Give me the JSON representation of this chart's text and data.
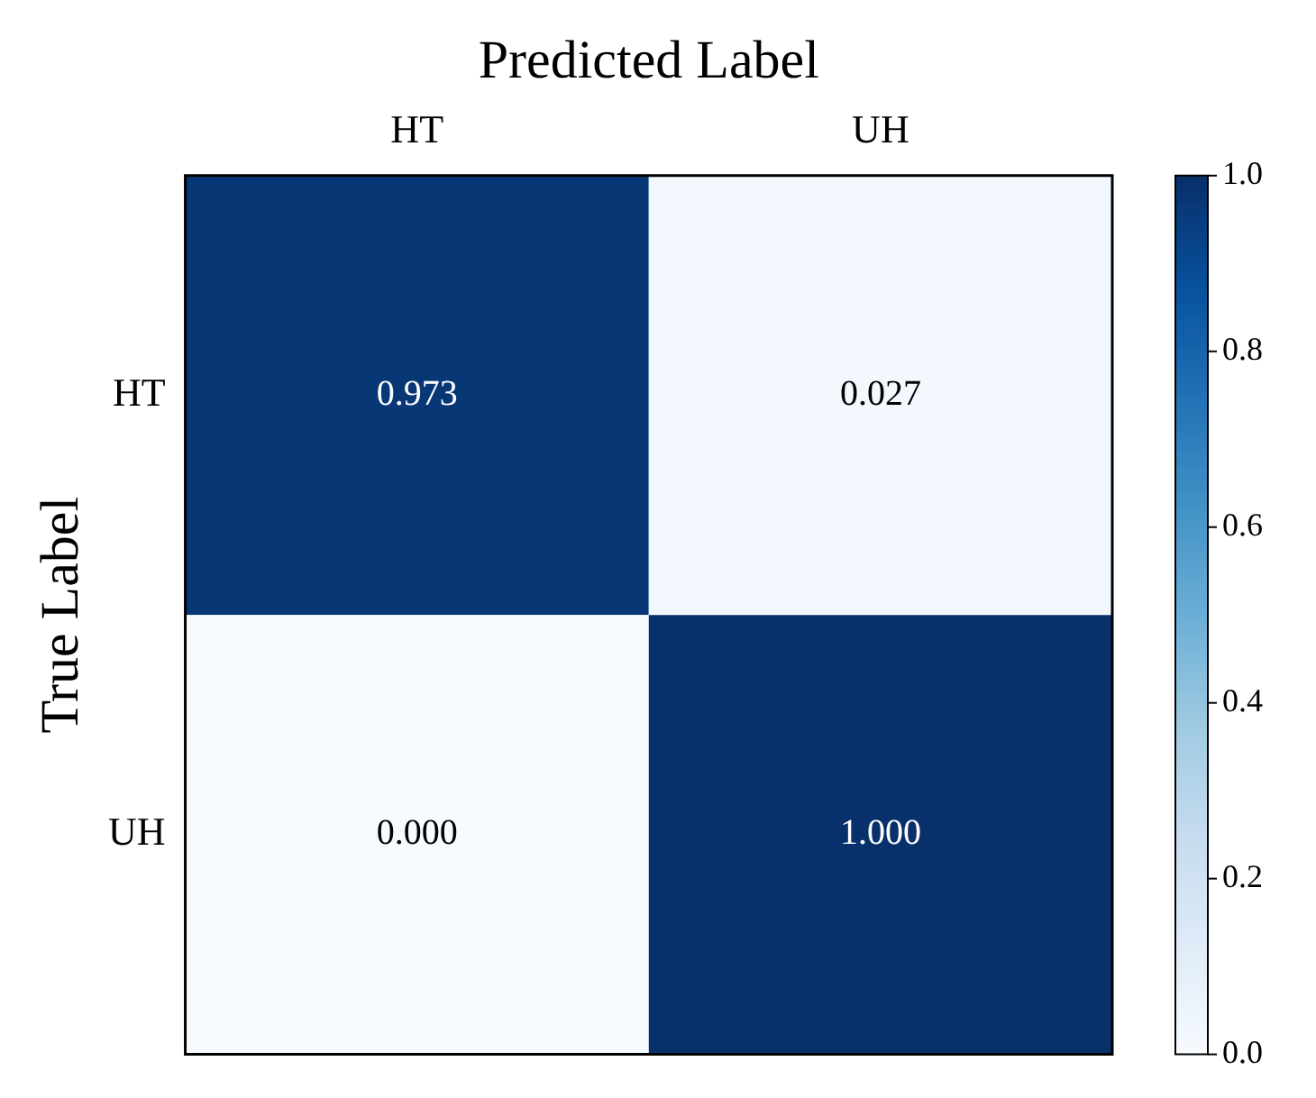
{
  "chart_data": {
    "type": "heatmap",
    "xlabel": "Predicted Label",
    "ylabel": "True Label",
    "categories": [
      "HT",
      "UH"
    ],
    "y_categories": [
      "HT",
      "UH"
    ],
    "cells": [
      [
        0.973,
        0.027
      ],
      [
        0.0,
        1.0
      ]
    ],
    "cell_labels": [
      [
        "0.973",
        "0.027"
      ],
      [
        "0.000",
        "1.000"
      ]
    ],
    "clim": [
      0,
      1
    ],
    "cticks": [
      {
        "value": 0,
        "label": "0.0"
      },
      0.2,
      0.4,
      0.6,
      0.8,
      {
        "value": 1,
        "label": "1.0"
      }
    ],
    "grid": false
  }
}
